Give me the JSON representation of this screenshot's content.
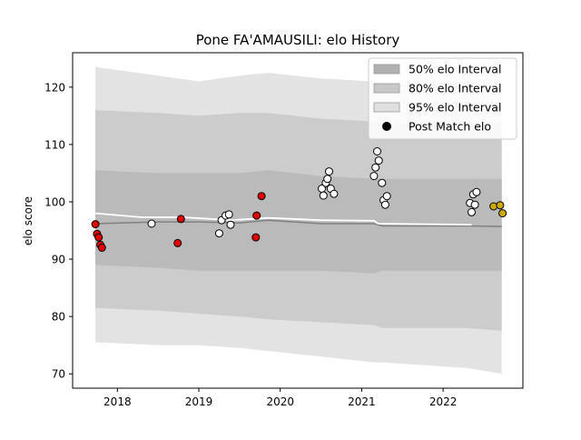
{
  "chart_data": {
    "type": "scatter",
    "title": "Pone FA'AMAUSILI: elo History",
    "xlabel": "",
    "ylabel": "elo score",
    "xlim": [
      2017.45,
      2022.98
    ],
    "ylim": [
      67.5,
      126.0
    ],
    "x_ticks": [
      2018,
      2019,
      2020,
      2021,
      2022
    ],
    "x_tick_labels": [
      "2018",
      "2019",
      "2020",
      "2021",
      "2022"
    ],
    "y_ticks": [
      70,
      80,
      90,
      100,
      110,
      120
    ],
    "y_tick_labels": [
      "70",
      "80",
      "90",
      "100",
      "110",
      "120"
    ],
    "grid": false,
    "legend_position": "top-right",
    "legend": [
      {
        "label": "50% elo Interval",
        "kind": "patch",
        "color": "#b0b0b0"
      },
      {
        "label": "80% elo Interval",
        "kind": "patch",
        "color": "#c8c8c8"
      },
      {
        "label": "95% elo Interval",
        "kind": "patch",
        "color": "#e0e0e0"
      },
      {
        "label": "Post Match elo",
        "kind": "marker",
        "color": "#000000"
      }
    ],
    "colors": {
      "band95": "#e3e3e3",
      "band80": "#cccccc",
      "band50": "#bababa",
      "mean_line": "#808080",
      "current_line": "#ffffff",
      "win": "#ffffff",
      "loss": "#e00000",
      "recent": "#ccaa00"
    },
    "bands": {
      "x": [
        2017.73,
        2018.5,
        2019.0,
        2019.5,
        2019.85,
        2020.5,
        2021.15,
        2021.25,
        2022.3,
        2022.72
      ],
      "p95_upper": [
        123.5,
        122.0,
        121.0,
        122.0,
        122.5,
        121.5,
        121.0,
        120.5,
        121.0,
        120.5
      ],
      "p95_lower": [
        75.5,
        75.0,
        75.0,
        74.5,
        74.0,
        73.0,
        72.0,
        72.0,
        71.0,
        70.0
      ],
      "p80_upper": [
        116.0,
        115.5,
        115.0,
        115.5,
        115.5,
        114.5,
        114.0,
        113.5,
        114.0,
        114.0
      ],
      "p80_lower": [
        81.5,
        81.0,
        80.5,
        80.0,
        79.5,
        79.0,
        78.5,
        78.0,
        78.0,
        77.5
      ],
      "p50_upper": [
        105.5,
        105.0,
        105.0,
        105.0,
        105.5,
        104.5,
        104.0,
        104.0,
        104.0,
        104.0
      ],
      "p50_lower": [
        89.0,
        88.5,
        88.0,
        88.0,
        88.0,
        88.0,
        87.5,
        88.0,
        88.0,
        88.0
      ]
    },
    "mean_line": {
      "x": [
        2017.73,
        2018.5,
        2019.0,
        2019.5,
        2019.85,
        2020.5,
        2021.15,
        2021.25,
        2022.3,
        2022.72
      ],
      "y": [
        96.2,
        96.5,
        96.5,
        96.3,
        96.8,
        96.2,
        96.2,
        95.8,
        95.8,
        95.7
      ]
    },
    "current_line": {
      "x": [
        2017.73,
        2018.3,
        2018.8,
        2019.4,
        2019.85,
        2020.5,
        2021.15,
        2021.2,
        2022.35
      ],
      "y": [
        98.0,
        97.3,
        97.3,
        96.8,
        97.2,
        96.8,
        96.7,
        96.2,
        96.0
      ]
    },
    "series": [
      {
        "kind": "win",
        "points": [
          {
            "x": 2018.42,
            "y": 96.2
          },
          {
            "x": 2019.25,
            "y": 94.5
          },
          {
            "x": 2019.28,
            "y": 96.8
          },
          {
            "x": 2019.33,
            "y": 97.6
          },
          {
            "x": 2019.37,
            "y": 97.8
          },
          {
            "x": 2019.39,
            "y": 96.0
          },
          {
            "x": 2020.51,
            "y": 102.3
          },
          {
            "x": 2020.53,
            "y": 101.1
          },
          {
            "x": 2020.56,
            "y": 103.3
          },
          {
            "x": 2020.58,
            "y": 104.0
          },
          {
            "x": 2020.6,
            "y": 105.3
          },
          {
            "x": 2020.62,
            "y": 102.3
          },
          {
            "x": 2020.66,
            "y": 101.4
          },
          {
            "x": 2021.15,
            "y": 104.5
          },
          {
            "x": 2021.17,
            "y": 106.0
          },
          {
            "x": 2021.19,
            "y": 108.8
          },
          {
            "x": 2021.21,
            "y": 107.2
          },
          {
            "x": 2021.25,
            "y": 103.3
          },
          {
            "x": 2021.27,
            "y": 100.3
          },
          {
            "x": 2021.29,
            "y": 99.5
          },
          {
            "x": 2021.31,
            "y": 101.0
          },
          {
            "x": 2022.33,
            "y": 99.8
          },
          {
            "x": 2022.35,
            "y": 98.2
          },
          {
            "x": 2022.37,
            "y": 101.3
          },
          {
            "x": 2022.39,
            "y": 99.5
          },
          {
            "x": 2022.41,
            "y": 101.7
          }
        ]
      },
      {
        "kind": "loss",
        "points": [
          {
            "x": 2017.73,
            "y": 96.1
          },
          {
            "x": 2017.75,
            "y": 94.4
          },
          {
            "x": 2017.77,
            "y": 93.8
          },
          {
            "x": 2017.79,
            "y": 92.5
          },
          {
            "x": 2017.81,
            "y": 92.0
          },
          {
            "x": 2018.74,
            "y": 92.8
          },
          {
            "x": 2018.78,
            "y": 97.0
          },
          {
            "x": 2019.7,
            "y": 93.8
          },
          {
            "x": 2019.71,
            "y": 97.6
          },
          {
            "x": 2019.77,
            "y": 101.0
          }
        ]
      },
      {
        "kind": "recent",
        "points": [
          {
            "x": 2022.62,
            "y": 99.2
          },
          {
            "x": 2022.7,
            "y": 99.4
          },
          {
            "x": 2022.73,
            "y": 98.0
          }
        ]
      }
    ]
  }
}
